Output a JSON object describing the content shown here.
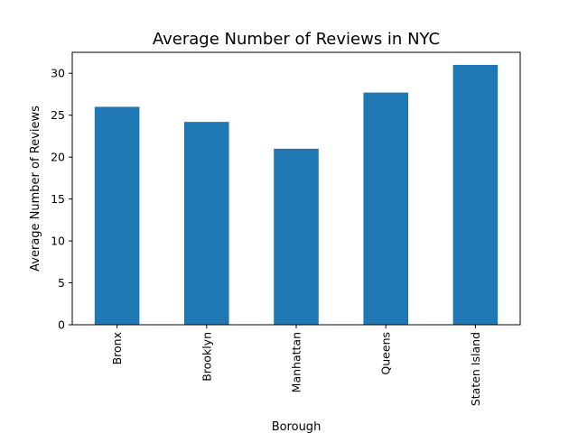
{
  "chart_data": {
    "type": "bar",
    "title": "Average Number of Reviews in NYC",
    "xlabel": "Borough",
    "ylabel": "Average Number of Reviews",
    "categories": [
      "Bronx",
      "Brooklyn",
      "Manhattan",
      "Queens",
      "Staten Island"
    ],
    "values": [
      26.0,
      24.2,
      21.0,
      27.7,
      31.0
    ],
    "ylim": [
      0,
      32.5
    ],
    "yticks": [
      0,
      5,
      10,
      15,
      20,
      25,
      30
    ],
    "bar_color": "#1f77b4",
    "grid": false,
    "legend": "none"
  }
}
